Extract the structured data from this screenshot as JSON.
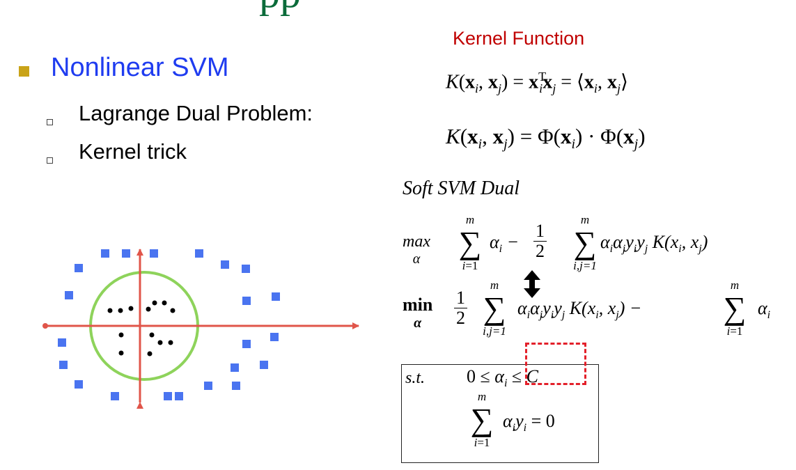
{
  "title_partial": "pp",
  "heading": "Nonlinear SVM",
  "subitems": [
    "Lagrange Dual Problem:",
    "Kernel trick"
  ],
  "kernel_function": {
    "title": "Kernel Function",
    "eq1": {
      "K": "K",
      "x": "x",
      "i": "i",
      "j": "j",
      "T": "T"
    },
    "eq2": {
      "phi": "Φ"
    }
  },
  "soft_svm": {
    "title": "Soft SVM Dual",
    "max_label": "max",
    "max_sub": "α",
    "min_label": "min",
    "min_sub": "α",
    "sum_upper": "m",
    "sum_lower_i": "i=1",
    "sum_lower_ij": "i,j=1",
    "half_num": "1",
    "half_den": "2",
    "st_label": "s.t."
  },
  "colors": {
    "heading": "#1f3cf0",
    "bullet": "#c9a318",
    "kernel_title": "#c00000",
    "axis": "#e0554a",
    "circle": "#8ed35b",
    "square": "#4a74f0",
    "highlight": "#e3202a"
  },
  "icons": {
    "double_arrow": "up-down-arrow-icon"
  }
}
